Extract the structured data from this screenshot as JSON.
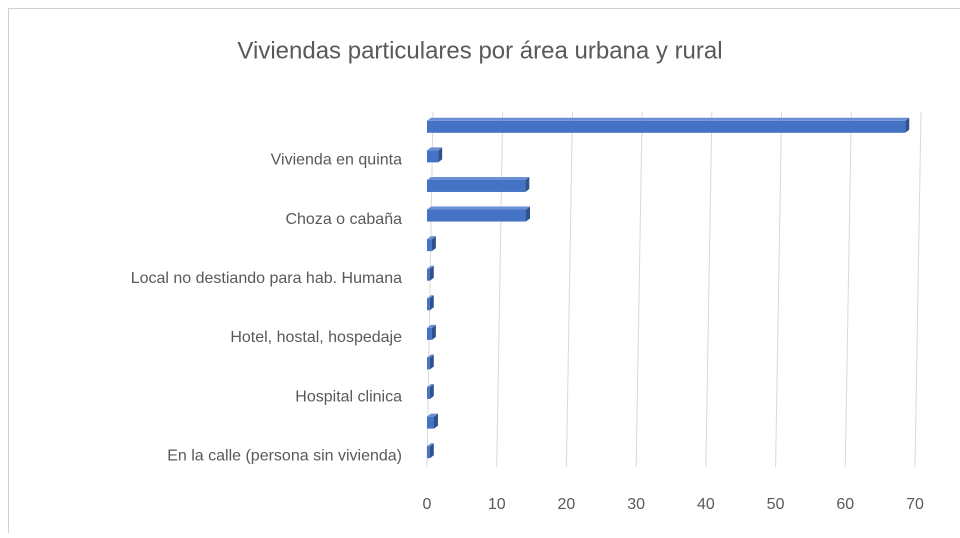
{
  "chart_data": {
    "type": "bar",
    "orientation": "horizontal",
    "title": "Viviendas particulares por área urbana y rural",
    "categories": [
      null,
      "Vivienda en quinta",
      null,
      "Choza o cabaña",
      null,
      "Local no destiando para hab. Humana",
      null,
      "Hotel, hostal, hospedaje",
      null,
      "Hospital clinica",
      null,
      "En la calle (persona sin vivienda)"
    ],
    "values": [
      68.6,
      1.6,
      14.1,
      14.2,
      0.7,
      0.4,
      0.4,
      0.7,
      0.4,
      0.4,
      1.0,
      0.4
    ],
    "color": "#4472c4",
    "xlim": [
      0,
      70
    ],
    "xticks": [
      0,
      10,
      20,
      30,
      40,
      50,
      60,
      70
    ],
    "grid": true
  }
}
